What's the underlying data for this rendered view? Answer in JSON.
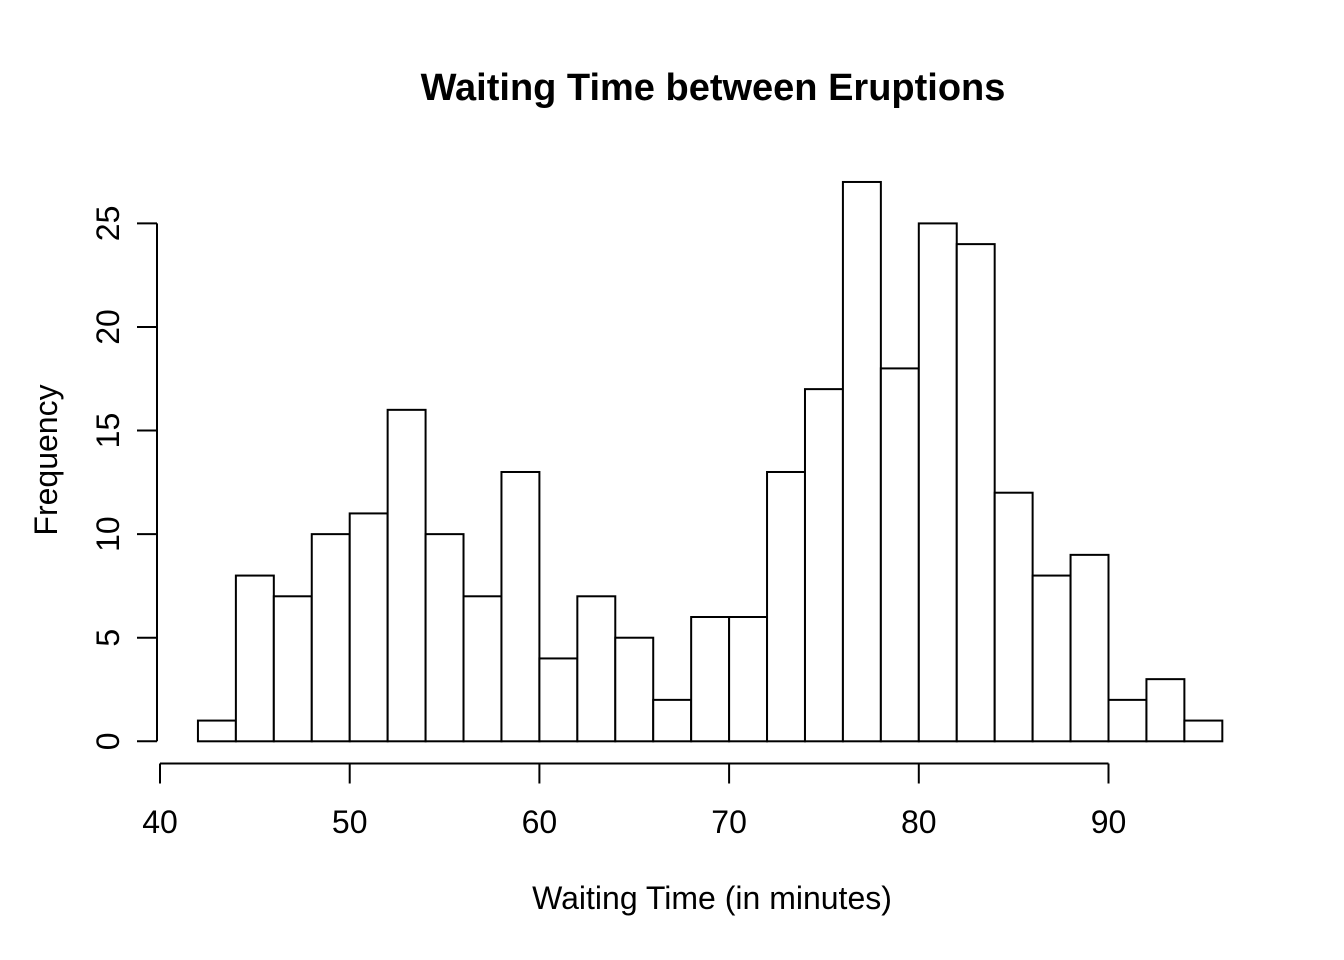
{
  "page": {
    "background": "#ffffff"
  },
  "chart_data": {
    "type": "bar",
    "subtype": "histogram",
    "title": "Waiting Time between Eruptions",
    "xlabel": "Waiting Time (in minutes)",
    "ylabel": "Frequency",
    "bin_start": 42,
    "bin_width": 2,
    "bins": [
      {
        "from": 42,
        "to": 44,
        "count": 1
      },
      {
        "from": 44,
        "to": 46,
        "count": 8
      },
      {
        "from": 46,
        "to": 48,
        "count": 7
      },
      {
        "from": 48,
        "to": 50,
        "count": 10
      },
      {
        "from": 50,
        "to": 52,
        "count": 11
      },
      {
        "from": 52,
        "to": 54,
        "count": 16
      },
      {
        "from": 54,
        "to": 56,
        "count": 10
      },
      {
        "from": 56,
        "to": 58,
        "count": 7
      },
      {
        "from": 58,
        "to": 60,
        "count": 13
      },
      {
        "from": 60,
        "to": 62,
        "count": 4
      },
      {
        "from": 62,
        "to": 64,
        "count": 7
      },
      {
        "from": 64,
        "to": 66,
        "count": 5
      },
      {
        "from": 66,
        "to": 68,
        "count": 2
      },
      {
        "from": 68,
        "to": 70,
        "count": 6
      },
      {
        "from": 70,
        "to": 72,
        "count": 6
      },
      {
        "from": 72,
        "to": 74,
        "count": 13
      },
      {
        "from": 74,
        "to": 76,
        "count": 17
      },
      {
        "from": 76,
        "to": 78,
        "count": 27
      },
      {
        "from": 78,
        "to": 80,
        "count": 18
      },
      {
        "from": 80,
        "to": 82,
        "count": 25
      },
      {
        "from": 82,
        "to": 84,
        "count": 24
      },
      {
        "from": 84,
        "to": 86,
        "count": 12
      },
      {
        "from": 86,
        "to": 88,
        "count": 8
      },
      {
        "from": 88,
        "to": 90,
        "count": 9
      },
      {
        "from": 90,
        "to": 92,
        "count": 2
      },
      {
        "from": 92,
        "to": 94,
        "count": 3
      },
      {
        "from": 94,
        "to": 96,
        "count": 1
      }
    ],
    "counts": [
      1,
      8,
      7,
      10,
      11,
      16,
      10,
      7,
      13,
      4,
      7,
      5,
      2,
      6,
      6,
      13,
      17,
      27,
      18,
      25,
      24,
      12,
      8,
      9,
      2,
      3,
      1
    ],
    "x_ticks": [
      40,
      50,
      60,
      70,
      80,
      90
    ],
    "y_ticks": [
      0,
      5,
      10,
      15,
      20,
      25
    ],
    "xlim": [
      40,
      96
    ],
    "ylim": [
      0,
      27
    ],
    "grid": false,
    "legend": "none",
    "bar_fill": "#ffffff",
    "line_color": "#000000",
    "text_color": "#000000"
  }
}
